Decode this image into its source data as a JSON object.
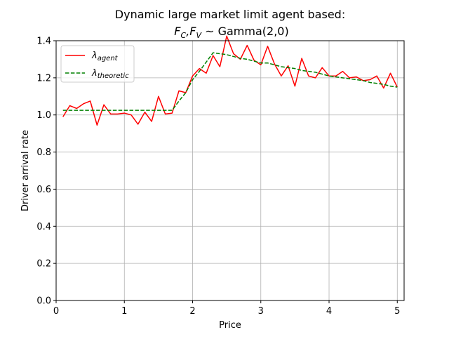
{
  "chart_data": {
    "type": "line",
    "title": "Dynamic large market limit agent based:",
    "subtitle": "F_C, F_V ~ Gamma(2,0)",
    "subtitle_parts": {
      "f": "F",
      "c": "C",
      "sep": ",",
      "v": "V",
      "tail": " ~ Gamma(2,0)"
    },
    "xlabel": "Price",
    "ylabel": "Driver arrival rate",
    "xlim": [
      0,
      5.1
    ],
    "ylim": [
      0,
      1.4
    ],
    "xticks": [
      0,
      1,
      2,
      3,
      4,
      5
    ],
    "xtick_labels": [
      "0",
      "1",
      "2",
      "3",
      "4",
      "5"
    ],
    "yticks": [
      0.0,
      0.2,
      0.4,
      0.6,
      0.8,
      1.0,
      1.2,
      1.4
    ],
    "ytick_labels": [
      "0.0",
      "0.2",
      "0.4",
      "0.6",
      "0.8",
      "1.0",
      "1.2",
      "1.4"
    ],
    "grid": true,
    "legend_position": "top-left",
    "series": [
      {
        "name": "λ_agent",
        "legend_symbol": "λ",
        "legend_sub": "agent",
        "color": "#ff0000",
        "style": "solid",
        "x": [
          0.1,
          0.2,
          0.3,
          0.4,
          0.5,
          0.6,
          0.7,
          0.8,
          0.9,
          1.0,
          1.1,
          1.2,
          1.3,
          1.4,
          1.5,
          1.6,
          1.7,
          1.8,
          1.9,
          2.0,
          2.1,
          2.2,
          2.3,
          2.4,
          2.5,
          2.6,
          2.7,
          2.8,
          2.9,
          3.0,
          3.1,
          3.2,
          3.3,
          3.4,
          3.5,
          3.6,
          3.7,
          3.8,
          3.9,
          4.0,
          4.1,
          4.2,
          4.3,
          4.4,
          4.5,
          4.6,
          4.7,
          4.8,
          4.9,
          5.0
        ],
        "y": [
          0.99,
          1.05,
          1.035,
          1.06,
          1.075,
          0.945,
          1.055,
          1.005,
          1.005,
          1.01,
          1.0,
          0.95,
          1.015,
          0.965,
          1.1,
          1.005,
          1.01,
          1.13,
          1.12,
          1.21,
          1.25,
          1.225,
          1.32,
          1.26,
          1.425,
          1.33,
          1.3,
          1.375,
          1.295,
          1.27,
          1.37,
          1.275,
          1.21,
          1.265,
          1.155,
          1.305,
          1.21,
          1.2,
          1.255,
          1.21,
          1.21,
          1.235,
          1.2,
          1.205,
          1.185,
          1.19,
          1.21,
          1.145,
          1.225,
          1.15
        ]
      },
      {
        "name": "λ_theoretic",
        "legend_symbol": "λ",
        "legend_sub": "theoretic",
        "color": "#008000",
        "style": "dashed",
        "x": [
          0.1,
          0.2,
          0.3,
          0.4,
          0.5,
          0.6,
          0.7,
          0.8,
          0.9,
          1.0,
          1.1,
          1.2,
          1.3,
          1.4,
          1.5,
          1.6,
          1.7,
          1.8,
          1.9,
          2.0,
          2.1,
          2.2,
          2.3,
          2.4,
          2.5,
          2.6,
          2.7,
          2.8,
          2.9,
          3.0,
          3.1,
          3.2,
          3.3,
          3.4,
          3.5,
          3.6,
          3.7,
          3.8,
          3.9,
          4.0,
          4.1,
          4.2,
          4.3,
          4.4,
          4.5,
          4.6,
          4.7,
          4.8,
          4.9,
          5.0
        ],
        "y": [
          1.025,
          1.025,
          1.025,
          1.025,
          1.025,
          1.025,
          1.025,
          1.025,
          1.025,
          1.025,
          1.025,
          1.025,
          1.025,
          1.025,
          1.025,
          1.025,
          1.025,
          1.075,
          1.12,
          1.19,
          1.235,
          1.285,
          1.335,
          1.33,
          1.325,
          1.315,
          1.305,
          1.3,
          1.29,
          1.28,
          1.28,
          1.27,
          1.26,
          1.255,
          1.25,
          1.24,
          1.235,
          1.23,
          1.22,
          1.21,
          1.205,
          1.2,
          1.195,
          1.19,
          1.185,
          1.175,
          1.17,
          1.165,
          1.155,
          1.15
        ]
      }
    ]
  }
}
